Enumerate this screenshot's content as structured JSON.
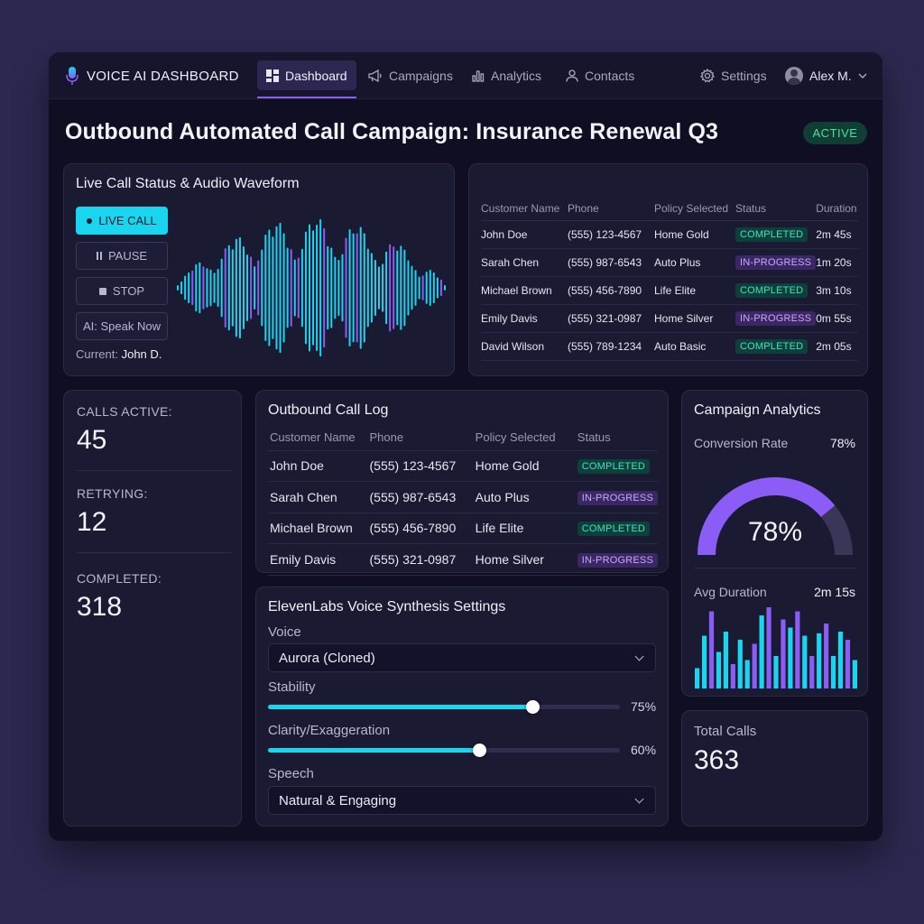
{
  "app": {
    "title": "VOICE AI DASHBOARD"
  },
  "nav": {
    "items": [
      {
        "label": "Dashboard",
        "icon": "dashboard-icon"
      },
      {
        "label": "Campaigns",
        "icon": "megaphone-icon"
      },
      {
        "label": "Analytics",
        "icon": "bar-chart-icon"
      },
      {
        "label": "Contacts",
        "icon": "person-icon"
      }
    ],
    "settings_label": "Settings",
    "user_name": "Alex M."
  },
  "page": {
    "title": "Outbound Automated Call Campaign: Insurance Renewal Q3",
    "status": "ACTIVE"
  },
  "live_call": {
    "title": "Live Call Status & Audio Waveform",
    "buttons": {
      "live": "LIVE CALL",
      "pause": "PAUSE",
      "stop": "STOP",
      "speak": "AI: Speak Now"
    },
    "current_label": "Current:",
    "current_value": "John D.",
    "waveform_colors": [
      "#19d5f0",
      "#8b5cf6"
    ]
  },
  "top_table": {
    "headers": [
      "Customer Name",
      "Phone",
      "Policy Selected",
      "Status",
      "Duration"
    ],
    "rows": [
      {
        "name": "John Doe",
        "phone": "(555) 123-4567",
        "policy": "Home Gold",
        "status": "COMPLETED",
        "duration": "2m 45s"
      },
      {
        "name": "Sarah Chen",
        "phone": "(555) 987-6543",
        "policy": "Auto Plus",
        "status": "IN-PROGRESS",
        "duration": "1m 20s"
      },
      {
        "name": "Michael Brown",
        "phone": "(555) 456-7890",
        "policy": "Life Elite",
        "status": "COMPLETED",
        "duration": "3m 10s"
      },
      {
        "name": "Emily Davis",
        "phone": "(555) 321-0987",
        "policy": "Home Silver",
        "status": "IN-PROGRESS",
        "duration": "0m 55s"
      },
      {
        "name": "David Wilson",
        "phone": "(555) 789-1234",
        "policy": "Auto Basic",
        "status": "COMPLETED",
        "duration": "2m 05s"
      }
    ]
  },
  "stats": {
    "calls_active_label": "CALLS ACTIVE:",
    "calls_active": "45",
    "retrying_label": "RETRYING:",
    "retrying": "12",
    "completed_label": "COMPLETED:",
    "completed": "318"
  },
  "call_log": {
    "title": "Outbound Call Log",
    "headers": [
      "Customer Name",
      "Phone",
      "Policy Selected",
      "Status"
    ],
    "rows": [
      {
        "name": "John Doe",
        "phone": "(555) 123-4567",
        "policy": "Home Gold",
        "status": "COMPLETED"
      },
      {
        "name": "Sarah Chen",
        "phone": "(555) 987-6543",
        "policy": "Auto Plus",
        "status": "IN-PROGRESS"
      },
      {
        "name": "Michael Brown",
        "phone": "(555) 456-7890",
        "policy": "Life Elite",
        "status": "COMPLETED"
      },
      {
        "name": "Emily Davis",
        "phone": "(555) 321-0987",
        "policy": "Home Silver",
        "status": "IN-PROGRESS"
      }
    ]
  },
  "voice_settings": {
    "title": "ElevenLabs Voice Synthesis Settings",
    "voice_label": "Voice",
    "voice_value": "Aurora (Cloned)",
    "stability_label": "Stability",
    "stability_value": 75,
    "stability_text": "75%",
    "clarity_label": "Clarity/Exaggeration",
    "clarity_value": 60,
    "clarity_text": "60%",
    "speech_label": "Speech",
    "speech_value": "Natural & Engaging"
  },
  "analytics": {
    "title": "Campaign Analytics",
    "conversion_label": "Conversion Rate",
    "conversion_value": "78%",
    "conversion_percent": 78,
    "gauge_text": "78%",
    "avg_duration_label": "Avg Duration",
    "avg_duration_value": "2m 15s",
    "bar_colors": [
      "#19d5f0",
      "#8b5cf6"
    ]
  },
  "total": {
    "label": "Total Calls",
    "value": "363"
  }
}
